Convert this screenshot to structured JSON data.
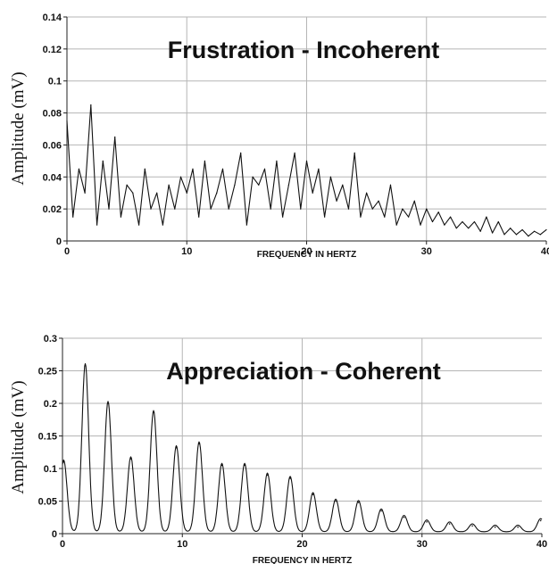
{
  "chart_data": [
    {
      "type": "line",
      "title": "Frustration - Incoherent",
      "xlabel": "FREQUENCY IN HERTZ",
      "ylabel": "Amplitude (mV)",
      "xlim": [
        0,
        40
      ],
      "ylim": [
        0,
        0.14
      ],
      "x_ticks": [
        "0",
        "10",
        "20",
        "30",
        "40"
      ],
      "y_ticks": [
        "0",
        "0.02",
        "0.04",
        "0.06",
        "0.08",
        "0.1",
        "0.12",
        "0.14"
      ],
      "grid": true,
      "x": [
        0,
        0.5,
        1,
        1.5,
        2,
        2.5,
        3,
        3.5,
        4,
        4.5,
        5,
        5.5,
        6,
        6.5,
        7,
        7.5,
        8,
        8.5,
        9,
        9.5,
        10,
        10.5,
        11,
        11.5,
        12,
        12.5,
        13,
        13.5,
        14,
        14.5,
        15,
        15.5,
        16,
        16.5,
        17,
        17.5,
        18,
        18.5,
        19,
        19.5,
        20,
        20.5,
        21,
        21.5,
        22,
        22.5,
        23,
        23.5,
        24,
        24.5,
        25,
        25.5,
        26,
        26.5,
        27,
        27.5,
        28,
        28.5,
        29,
        29.5,
        30,
        30.5,
        31,
        31.5,
        32,
        32.5,
        33,
        33.5,
        34,
        34.5,
        35,
        35.5,
        36,
        36.5,
        37,
        37.5,
        38,
        38.5,
        39,
        39.5,
        40
      ],
      "series": [
        {
          "values": [
            0.075,
            0.015,
            0.045,
            0.03,
            0.085,
            0.01,
            0.05,
            0.02,
            0.065,
            0.015,
            0.035,
            0.03,
            0.01,
            0.045,
            0.02,
            0.03,
            0.01,
            0.035,
            0.02,
            0.04,
            0.03,
            0.045,
            0.015,
            0.05,
            0.02,
            0.03,
            0.045,
            0.02,
            0.035,
            0.055,
            0.01,
            0.04,
            0.035,
            0.045,
            0.02,
            0.05,
            0.015,
            0.035,
            0.055,
            0.02,
            0.05,
            0.03,
            0.045,
            0.015,
            0.04,
            0.025,
            0.035,
            0.02,
            0.055,
            0.015,
            0.03,
            0.02,
            0.025,
            0.015,
            0.035,
            0.01,
            0.02,
            0.015,
            0.025,
            0.01,
            0.02,
            0.012,
            0.018,
            0.01,
            0.015,
            0.008,
            0.012,
            0.008,
            0.012,
            0.006,
            0.015,
            0.005,
            0.012,
            0.004,
            0.008,
            0.004,
            0.007,
            0.003,
            0.006,
            0.004,
            0.007
          ]
        }
      ]
    },
    {
      "type": "line",
      "title": "Appreciation - Coherent",
      "xlabel": "FREQUENCY IN HERTZ",
      "ylabel": "Amplitude (mV)",
      "xlim": [
        0,
        40
      ],
      "ylim": [
        0,
        0.3
      ],
      "x_ticks": [
        "0",
        "10",
        "20",
        "30",
        "40"
      ],
      "y_ticks": [
        "0",
        "0.05",
        "0.1",
        "0.15",
        "0.2",
        "0.25",
        "0.3"
      ],
      "grid": true,
      "peaks": [
        {
          "x": 0.1,
          "y": 0.11
        },
        {
          "x": 1.9,
          "y": 0.258
        },
        {
          "x": 3.8,
          "y": 0.2
        },
        {
          "x": 5.7,
          "y": 0.115
        },
        {
          "x": 7.6,
          "y": 0.186
        },
        {
          "x": 9.5,
          "y": 0.132
        },
        {
          "x": 11.4,
          "y": 0.138
        },
        {
          "x": 13.3,
          "y": 0.105
        },
        {
          "x": 15.2,
          "y": 0.105
        },
        {
          "x": 17.1,
          "y": 0.09
        },
        {
          "x": 19.0,
          "y": 0.085
        },
        {
          "x": 20.9,
          "y": 0.06
        },
        {
          "x": 22.8,
          "y": 0.05
        },
        {
          "x": 24.7,
          "y": 0.048
        },
        {
          "x": 26.6,
          "y": 0.035
        },
        {
          "x": 28.5,
          "y": 0.025
        },
        {
          "x": 30.4,
          "y": 0.018
        },
        {
          "x": 32.3,
          "y": 0.015
        },
        {
          "x": 34.2,
          "y": 0.012
        },
        {
          "x": 36.1,
          "y": 0.01
        },
        {
          "x": 38.0,
          "y": 0.01
        },
        {
          "x": 39.9,
          "y": 0.02
        }
      ]
    }
  ]
}
